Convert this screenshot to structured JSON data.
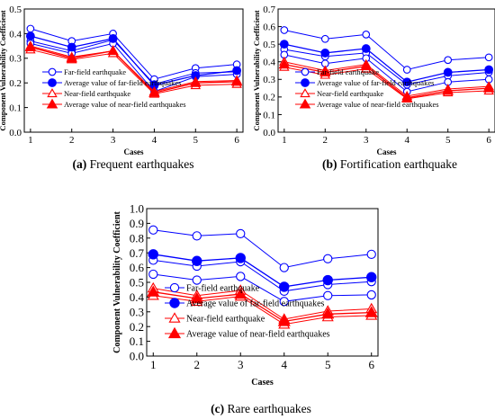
{
  "colors": {
    "far_field": "#0000ff",
    "near_field": "#ff0000",
    "axis": "#000000",
    "background": "#ffffff"
  },
  "legend_entries": [
    {
      "label": "Far-field earthquake",
      "series": "far",
      "marker": "circle-open"
    },
    {
      "label": "Average value of far-field earthquakes",
      "series": "far",
      "marker": "circle-filled"
    },
    {
      "label": "Near-field earthquake",
      "series": "near",
      "marker": "triangle-open"
    },
    {
      "label": "Average value of near-field earthquakes",
      "series": "near",
      "marker": "triangle-filled"
    }
  ],
  "chart_data": [
    {
      "type": "line",
      "caption_letter": "(a)",
      "caption_text": " Frequent earthquakes",
      "xlabel": "Cases",
      "ylabel": "Component Vulnerability Coefficient",
      "x": [
        1,
        2,
        3,
        4,
        5,
        6
      ],
      "xlim": [
        0.85,
        6.15
      ],
      "ylim": [
        0.0,
        0.5
      ],
      "yticks": [
        "0.0",
        "0.1",
        "0.2",
        "0.3",
        "0.4",
        "0.5"
      ],
      "ytick_values": [
        0.0,
        0.1,
        0.2,
        0.3,
        0.4,
        0.5
      ],
      "legend_position": "bottom-left",
      "series": [
        {
          "group": "far",
          "kind": "individual",
          "values": [
            0.42,
            0.37,
            0.4,
            0.215,
            0.26,
            0.275
          ]
        },
        {
          "group": "far",
          "kind": "individual",
          "values": [
            0.37,
            0.33,
            0.375,
            0.195,
            0.24,
            0.245
          ]
        },
        {
          "group": "far",
          "kind": "individual",
          "values": [
            0.36,
            0.32,
            0.36,
            0.165,
            0.225,
            0.235
          ]
        },
        {
          "name": "Average value of far-field earthquakes",
          "group": "far",
          "kind": "average",
          "values": [
            0.39,
            0.345,
            0.38,
            0.19,
            0.23,
            0.25
          ]
        },
        {
          "group": "near",
          "kind": "individual",
          "values": [
            0.35,
            0.305,
            0.33,
            0.165,
            0.205,
            0.21
          ]
        },
        {
          "group": "near",
          "kind": "individual",
          "values": [
            0.335,
            0.295,
            0.32,
            0.155,
            0.19,
            0.195
          ]
        },
        {
          "name": "Average value of near-field earthquakes",
          "group": "near",
          "kind": "average",
          "values": [
            0.345,
            0.3,
            0.33,
            0.16,
            0.2,
            0.205
          ]
        }
      ]
    },
    {
      "type": "line",
      "caption_letter": "(b)",
      "caption_text": " Fortification earthquake",
      "xlabel": "Cases",
      "ylabel": "Component Vulnerability Coefficient",
      "x": [
        1,
        2,
        3,
        4,
        5,
        6
      ],
      "xlim": [
        0.85,
        6.15
      ],
      "ylim": [
        0.0,
        0.7
      ],
      "yticks": [
        "0.0",
        "0.1",
        "0.2",
        "0.3",
        "0.4",
        "0.5",
        "0.6",
        "0.7"
      ],
      "ytick_values": [
        0.0,
        0.1,
        0.2,
        0.3,
        0.4,
        0.5,
        0.6,
        0.7
      ],
      "legend_position": "bottom-left",
      "series": [
        {
          "group": "far",
          "kind": "individual",
          "values": [
            0.58,
            0.53,
            0.555,
            0.355,
            0.41,
            0.425
          ]
        },
        {
          "group": "far",
          "kind": "individual",
          "values": [
            0.47,
            0.43,
            0.45,
            0.27,
            0.32,
            0.34
          ]
        },
        {
          "group": "far",
          "kind": "individual",
          "values": [
            0.44,
            0.39,
            0.42,
            0.23,
            0.285,
            0.3
          ]
        },
        {
          "name": "Average value of far-field earthquakes",
          "group": "far",
          "kind": "average",
          "values": [
            0.5,
            0.45,
            0.475,
            0.285,
            0.34,
            0.355
          ]
        },
        {
          "group": "near",
          "kind": "individual",
          "values": [
            0.4,
            0.35,
            0.385,
            0.205,
            0.245,
            0.26
          ]
        },
        {
          "group": "near",
          "kind": "individual",
          "values": [
            0.37,
            0.325,
            0.36,
            0.19,
            0.225,
            0.235
          ]
        },
        {
          "name": "Average value of near-field earthquakes",
          "group": "near",
          "kind": "average",
          "values": [
            0.385,
            0.34,
            0.375,
            0.195,
            0.235,
            0.25
          ]
        }
      ]
    },
    {
      "type": "line",
      "caption_letter": "(c)",
      "caption_text": " Rare earthquakes",
      "xlabel": "Cases",
      "ylabel": "Component Vulnerability Coefficient",
      "x": [
        1,
        2,
        3,
        4,
        5,
        6
      ],
      "xlim": [
        0.85,
        6.15
      ],
      "ylim": [
        0.0,
        1.0
      ],
      "yticks": [
        "0.0",
        "0.1",
        "0.2",
        "0.3",
        "0.4",
        "0.5",
        "0.6",
        "0.7",
        "0.8",
        "0.9",
        "1.0"
      ],
      "ytick_values": [
        0.0,
        0.1,
        0.2,
        0.3,
        0.4,
        0.5,
        0.6,
        0.7,
        0.8,
        0.9,
        1.0
      ],
      "legend_position": "bottom-left",
      "series": [
        {
          "group": "far",
          "kind": "individual",
          "values": [
            0.855,
            0.815,
            0.83,
            0.6,
            0.66,
            0.69
          ]
        },
        {
          "group": "far",
          "kind": "individual",
          "values": [
            0.65,
            0.61,
            0.64,
            0.44,
            0.485,
            0.505
          ]
        },
        {
          "group": "far",
          "kind": "individual",
          "values": [
            0.555,
            0.515,
            0.54,
            0.37,
            0.41,
            0.415
          ]
        },
        {
          "name": "Average value of far-field earthquakes",
          "group": "far",
          "kind": "average",
          "values": [
            0.69,
            0.645,
            0.665,
            0.47,
            0.515,
            0.535
          ]
        },
        {
          "group": "near",
          "kind": "individual",
          "values": [
            0.46,
            0.41,
            0.445,
            0.25,
            0.305,
            0.32
          ]
        },
        {
          "group": "near",
          "kind": "individual",
          "values": [
            0.41,
            0.37,
            0.405,
            0.215,
            0.265,
            0.275
          ]
        },
        {
          "name": "Average value of near-field earthquakes",
          "group": "near",
          "kind": "average",
          "values": [
            0.435,
            0.39,
            0.42,
            0.235,
            0.285,
            0.295
          ]
        }
      ]
    }
  ]
}
